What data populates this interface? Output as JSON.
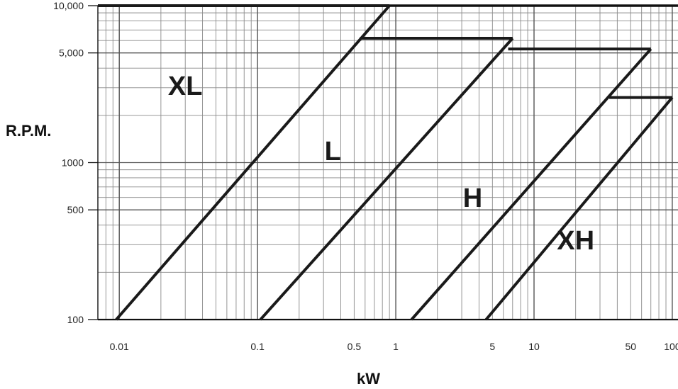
{
  "chart_data": {
    "type": "line",
    "xlabel": "kW",
    "ylabel": "R.P.M.",
    "x_scale": "log",
    "y_scale": "log",
    "xlim": [
      0.007,
      110
    ],
    "ylim": [
      100,
      10000
    ],
    "grid": true,
    "x_ticks": [
      {
        "value": 0.01,
        "label": "0.01"
      },
      {
        "value": 0.1,
        "label": "0.1"
      },
      {
        "value": 0.5,
        "label": "0.5"
      },
      {
        "value": 1,
        "label": "1"
      },
      {
        "value": 5,
        "label": "5"
      },
      {
        "value": 10,
        "label": "10"
      },
      {
        "value": 50,
        "label": "50"
      },
      {
        "value": 100,
        "label": "100"
      }
    ],
    "y_ticks": [
      {
        "value": 10000,
        "label": "10,000"
      },
      {
        "value": 5000,
        "label": "5,000"
      },
      {
        "value": 1000,
        "label": "1000"
      },
      {
        "value": 500,
        "label": "500"
      },
      {
        "value": 100,
        "label": "100"
      }
    ],
    "regions": [
      {
        "label": "XL",
        "label_x": 0.03,
        "label_y": 3000,
        "upper_cap": [
          [
            0.007,
            10000
          ],
          [
            0.9,
            10000
          ]
        ]
      },
      {
        "label": "L",
        "label_x": 0.35,
        "label_y": 1150,
        "upper_cap": [
          [
            0.55,
            6200
          ],
          [
            7,
            6200
          ]
        ]
      },
      {
        "label": "H",
        "label_x": 3.6,
        "label_y": 580,
        "upper_cap": [
          [
            6.5,
            5300
          ],
          [
            70,
            5300
          ]
        ]
      },
      {
        "label": "XH",
        "label_x": 20,
        "label_y": 310,
        "upper_cap": [
          [
            35,
            2600
          ],
          [
            100,
            2600
          ]
        ]
      }
    ],
    "boundary_lines": [
      [
        [
          0.0095,
          100
        ],
        [
          0.9,
          10000
        ]
      ],
      [
        [
          0.105,
          100
        ],
        [
          7,
          6200
        ]
      ],
      [
        [
          1.3,
          100
        ],
        [
          70,
          5300
        ]
      ],
      [
        [
          4.5,
          100
        ],
        [
          100,
          2600
        ]
      ]
    ]
  }
}
